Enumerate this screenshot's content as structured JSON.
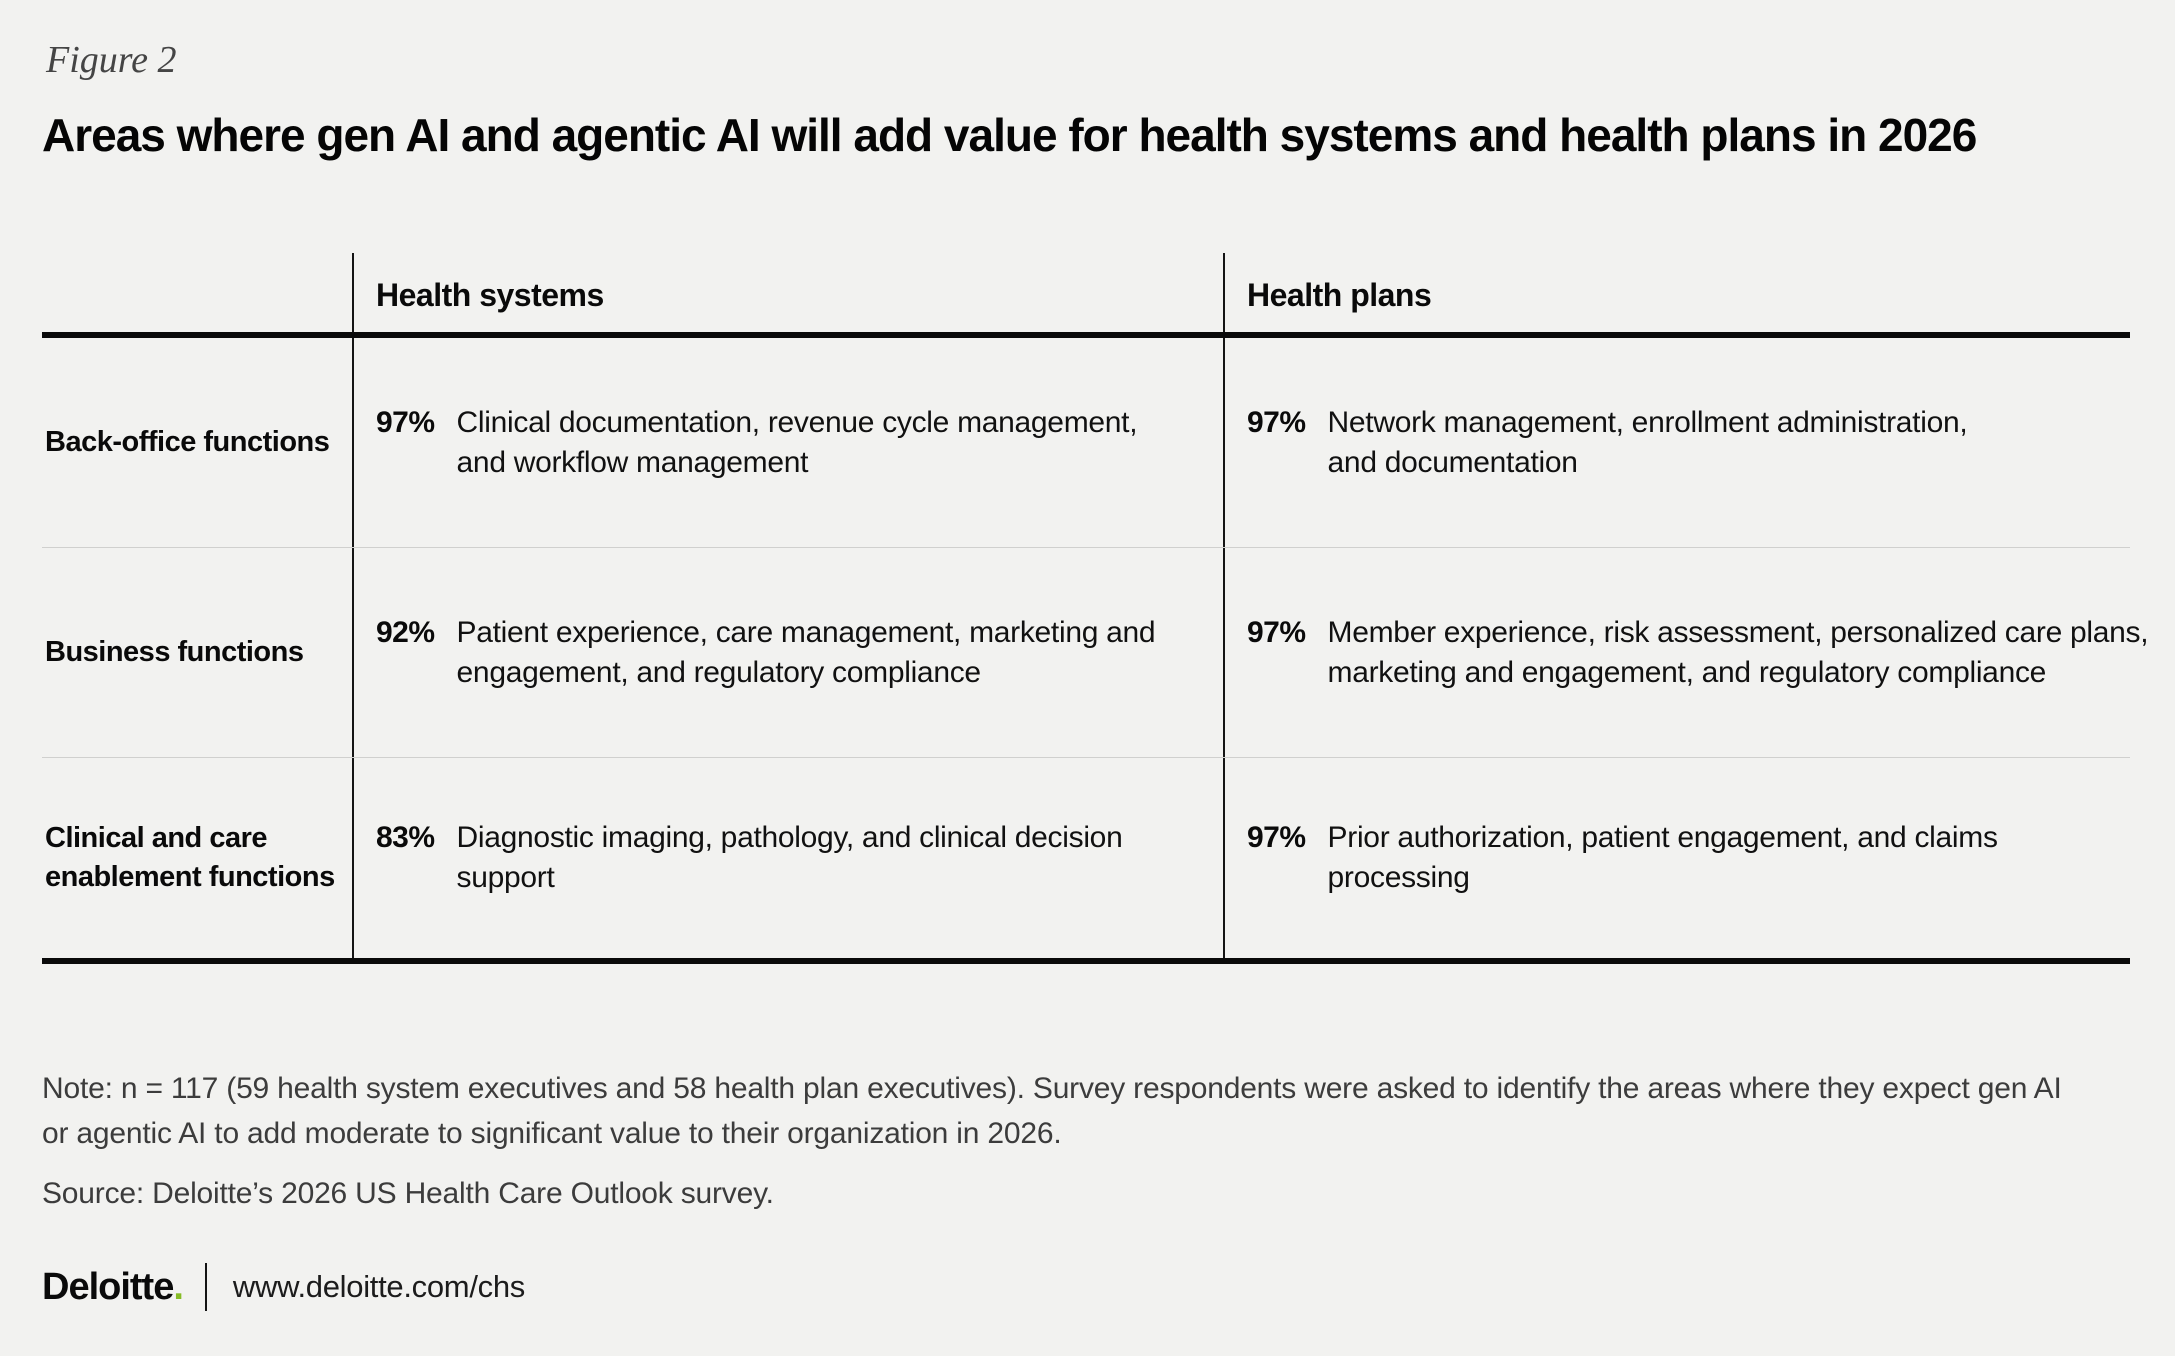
{
  "figure_label": "Figure 2",
  "title": "Areas where gen AI and agentic AI will add value for health systems and health plans in 2026",
  "columns": {
    "health_systems": "Health systems",
    "health_plans": "Health plans"
  },
  "table": {
    "rows": [
      {
        "label": "Back-office functions",
        "label_lines": [
          "Back-office functions"
        ],
        "health_systems": {
          "pct": "97%",
          "desc_lines": [
            "Clinical documentation, revenue cycle management,",
            "and workflow management"
          ]
        },
        "health_plans": {
          "pct": "97%",
          "desc_lines": [
            "Network management, enrollment administration,",
            "and documentation"
          ]
        }
      },
      {
        "label": "Business functions",
        "label_lines": [
          "Business functions"
        ],
        "health_systems": {
          "pct": "92%",
          "desc_lines": [
            "Patient experience, care management, marketing and",
            "engagement, and regulatory compliance"
          ]
        },
        "health_plans": {
          "pct": "97%",
          "desc_lines": [
            "Member experience, risk assessment, personalized care plans,",
            "marketing and engagement, and regulatory compliance"
          ]
        }
      },
      {
        "label": "Clinical and care enablement functions",
        "label_lines": [
          "Clinical and care",
          "enablement functions"
        ],
        "health_systems": {
          "pct": "83%",
          "desc_lines": [
            "Diagnostic imaging, pathology, and clinical decision",
            "support"
          ]
        },
        "health_plans": {
          "pct": "97%",
          "desc_lines": [
            "Prior authorization, patient engagement, and claims",
            "processing"
          ]
        }
      }
    ]
  },
  "notes": {
    "note": "Note: n = 117 (59 health system executives and 58 health plan executives). Survey respondents were asked to identify the areas where they expect gen AI or agentic AI to add moderate to significant value to their organization in 2026.",
    "source": "Source: Deloitte’s 2026 US Health Care Outlook survey."
  },
  "footer": {
    "brand": "Deloitte",
    "brand_dot": ".",
    "url": "www.deloitte.com/chs"
  },
  "colors": {
    "background": "#f2f2f0",
    "text": "#0a0a0a",
    "note_text": "#3c3c3c",
    "figure_label_text": "#454545",
    "row_separator": "#d0d0ce",
    "table_rule": "#0a0a0a",
    "brand_green": "#86bc25"
  },
  "chart_data": {
    "type": "table",
    "title": "Areas where gen AI and agentic AI will add value for health systems and health plans in 2026",
    "row_categories": [
      "Back-office functions",
      "Business functions",
      "Clinical and care enablement functions"
    ],
    "series": [
      {
        "name": "Health systems",
        "values": [
          97,
          92,
          83
        ],
        "descriptions": [
          "Clinical documentation, revenue cycle management, and workflow management",
          "Patient experience, care management, marketing and engagement, and regulatory compliance",
          "Diagnostic imaging, pathology, and clinical decision support"
        ]
      },
      {
        "name": "Health plans",
        "values": [
          97,
          97,
          97
        ],
        "descriptions": [
          "Network management, enrollment administration, and documentation",
          "Member experience, risk assessment, personalized care plans, marketing and engagement, and regulatory compliance",
          "Prior authorization, patient engagement, and claims processing"
        ]
      }
    ],
    "unit": "%",
    "note": "n = 117 (59 health system executives and 58 health plan executives). Respondents identified areas where they expect gen AI or agentic AI to add moderate to significant value in 2026."
  }
}
